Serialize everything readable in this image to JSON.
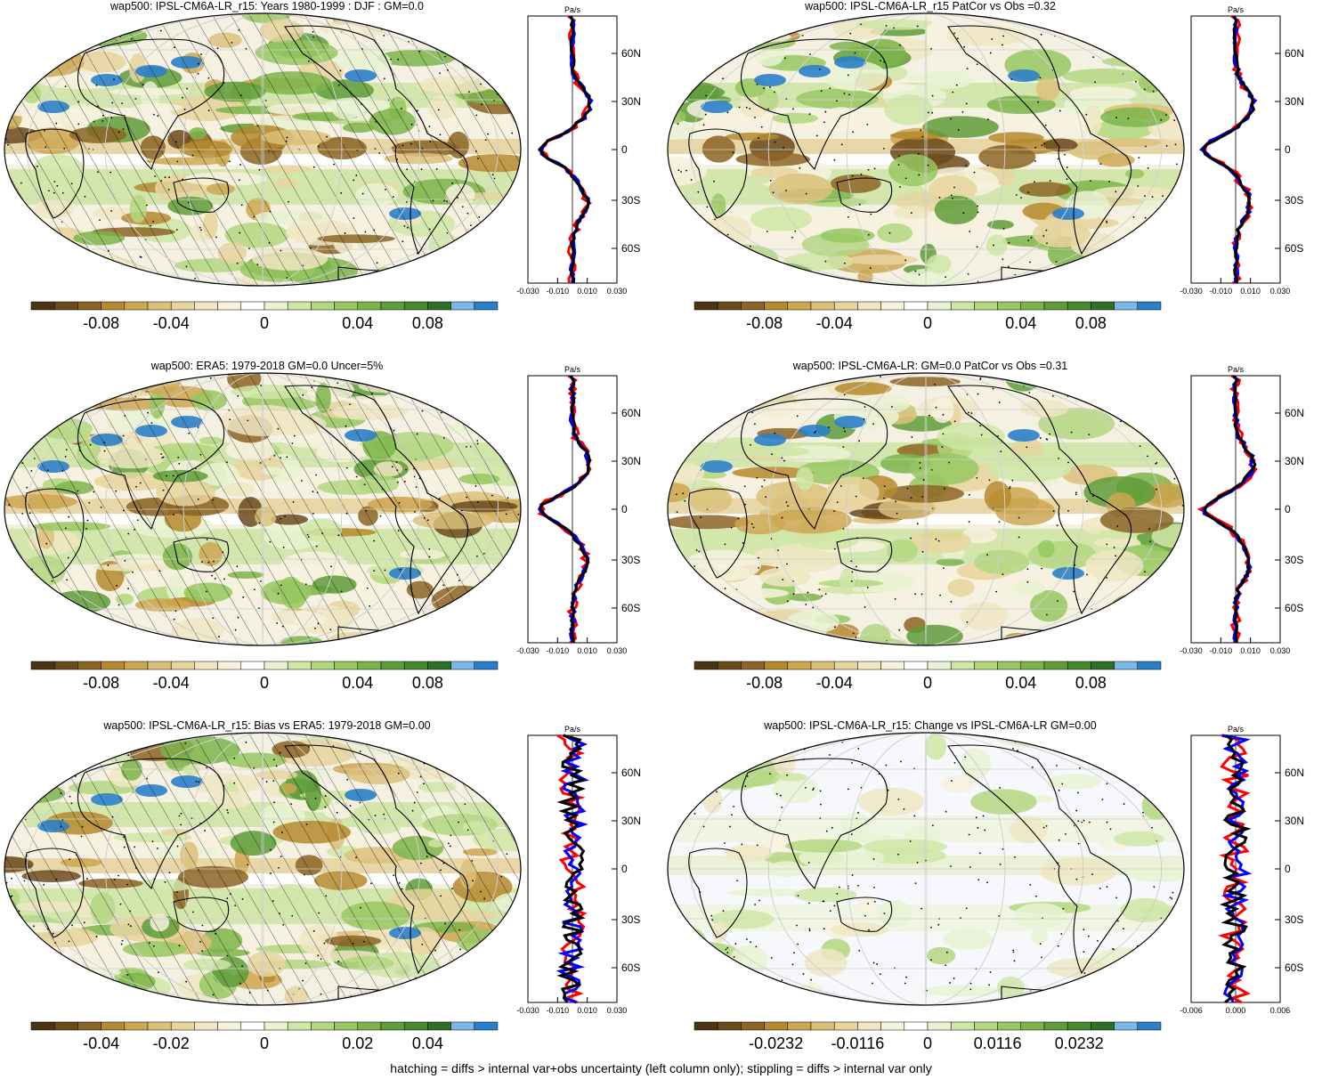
{
  "colors": {
    "scale": [
      "#4a3414",
      "#6b4a1c",
      "#8c6425",
      "#b58a2e",
      "#cda650",
      "#dcc07a",
      "#e8d59e",
      "#f0e6c2",
      "#f7f2de",
      "#ffffff",
      "#e9f2d2",
      "#cfe6a6",
      "#b3d77f",
      "#97c760",
      "#7cb44a",
      "#5f9c3a",
      "#468a30",
      "#2f6e26",
      "#79b8e8",
      "#2b7fc9"
    ],
    "obs_line": "#ff0000",
    "model_line": "#0000ff",
    "diff_line": "#000000"
  },
  "panels": [
    {
      "title": "wap500: IPSL-CM6A-LR_r15: Years 1980-1999 : DJF : GM=0.0",
      "cb_labels": [
        "-0.08",
        "-0.04",
        "0",
        "0.04",
        "0.08"
      ],
      "zm_unit": "Pa/s",
      "zm_xticks": [
        "-0.030",
        "-0.010",
        "0.010",
        "0.030"
      ],
      "zm_lat": [
        "60N",
        "30N",
        "0",
        "30S",
        "60S"
      ],
      "hatched": true
    },
    {
      "title": "wap500: IPSL-CM6A-LR_r15 PatCor vs Obs =0.32",
      "cb_labels": [
        "-0.08",
        "-0.04",
        "0",
        "0.04",
        "0.08"
      ],
      "zm_unit": "Pa/s",
      "zm_xticks": [
        "-0.030",
        "-0.010",
        "0.010",
        "0.030"
      ],
      "zm_lat": [
        "60N",
        "30N",
        "0",
        "30S",
        "60S"
      ],
      "hatched": false
    },
    {
      "title": "wap500: ERA5: 1979-2018 GM=0.0 Uncer=5%",
      "cb_labels": [
        "-0.08",
        "-0.04",
        "0",
        "0.04",
        "0.08"
      ],
      "zm_unit": "Pa/s",
      "zm_xticks": [
        "-0.030",
        "-0.010",
        "0.010",
        "0.030"
      ],
      "zm_lat": [
        "60N",
        "30N",
        "0",
        "30S",
        "60S"
      ],
      "hatched": true
    },
    {
      "title": "wap500: IPSL-CM6A-LR: GM=0.0 PatCor vs Obs =0.31",
      "cb_labels": [
        "-0.08",
        "-0.04",
        "0",
        "0.04",
        "0.08"
      ],
      "zm_unit": "Pa/s",
      "zm_xticks": [
        "-0.030",
        "-0.010",
        "0.010",
        "0.030"
      ],
      "zm_lat": [
        "60N",
        "30N",
        "0",
        "30S",
        "60S"
      ],
      "hatched": false
    },
    {
      "title": "wap500: IPSL-CM6A-LR_r15: Bias vs ERA5: 1979-2018 GM=0.00",
      "cb_labels": [
        "-0.04",
        "-0.02",
        "0",
        "0.02",
        "0.04"
      ],
      "zm_unit": "Pa/s",
      "zm_xticks": [
        "-0.030",
        "-0.010",
        "0.010",
        "0.030"
      ],
      "zm_lat": [
        "60N",
        "30N",
        "0",
        "30S",
        "60S"
      ],
      "hatched": true
    },
    {
      "title": "wap500: IPSL-CM6A-LR_r15: Change vs IPSL-CM6A-LR GM=0.00",
      "cb_labels": [
        "-0.0232",
        "-0.0116",
        "0",
        "0.0116",
        "0.0232"
      ],
      "zm_unit": "Pa/s",
      "zm_xticks": [
        "-0.006",
        "0.000",
        "0.006"
      ],
      "zm_lat": [
        "60N",
        "30N",
        "0",
        "30S",
        "60S"
      ],
      "hatched": false
    }
  ],
  "footnote": "hatching = diffs > internal var+obs uncertainty (left column only); stippling = diffs > internal var only"
}
